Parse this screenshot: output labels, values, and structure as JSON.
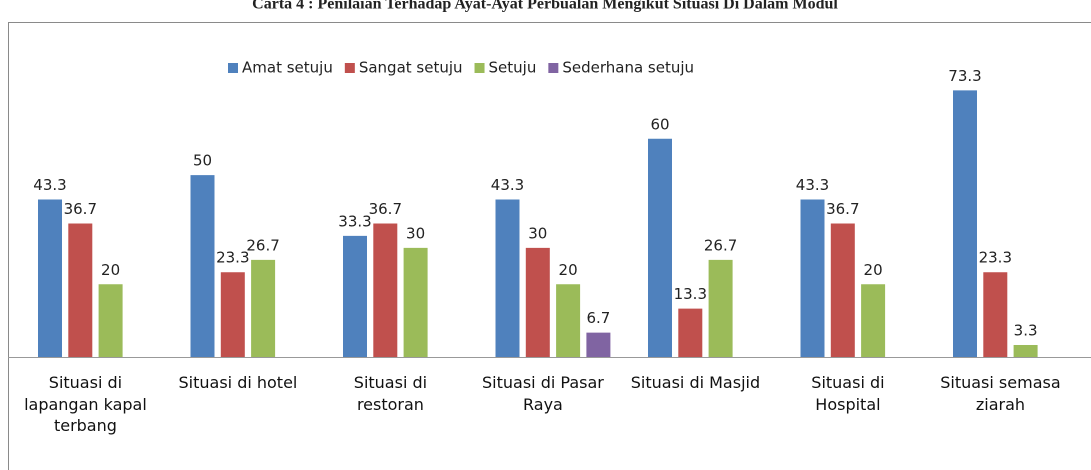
{
  "chart_data": {
    "type": "bar",
    "title": "Carta 4 : Penilaian Terhadap Ayat-Ayat Perbualan Mengikut Situasi Di Dalam Modul",
    "categories": [
      "Situasi di lapangan kapal terbang",
      "Situasi di hotel",
      "Situasi di restoran",
      "Situasi di Pasar Raya",
      "Situasi di Masjid",
      "Situasi di Hospital",
      "Situasi semasa ziarah"
    ],
    "series": [
      {
        "name": "Amat setuju",
        "color": "#4f81bd",
        "values": [
          43.3,
          50,
          33.3,
          43.3,
          60,
          43.3,
          73.3
        ]
      },
      {
        "name": "Sangat setuju",
        "color": "#c0504d",
        "values": [
          36.7,
          23.3,
          36.7,
          30,
          13.3,
          36.7,
          23.3
        ]
      },
      {
        "name": "Setuju",
        "color": "#9bbb59",
        "values": [
          20,
          26.7,
          30,
          20,
          26.7,
          20,
          3.3
        ]
      },
      {
        "name": "Sederhana setuju",
        "color": "#8064a2",
        "values": [
          null,
          null,
          null,
          6.7,
          null,
          null,
          null
        ]
      }
    ],
    "ylim": [
      0,
      80
    ],
    "legend": "top"
  }
}
